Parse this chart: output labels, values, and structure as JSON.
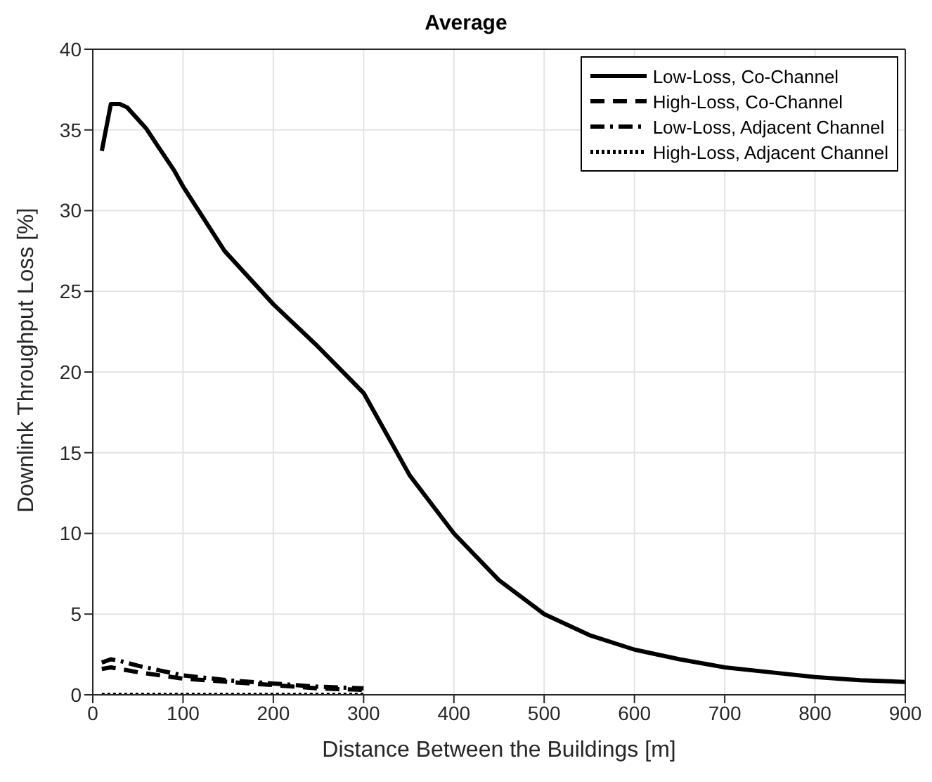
{
  "chart_data": {
    "type": "line",
    "title": "Average",
    "xlabel": "Distance Between the Buildings [m]",
    "ylabel": "Downlink Throughput Loss [%]",
    "xlim": [
      0,
      900
    ],
    "xticks": [
      0,
      100,
      200,
      300,
      400,
      500,
      600,
      700,
      800,
      900
    ],
    "ylim": [
      0,
      40
    ],
    "yticks": [
      0,
      5,
      10,
      15,
      20,
      25,
      30,
      35,
      40
    ],
    "grid": true,
    "legend": "top right",
    "marker": "none",
    "series": [
      {
        "name": "Low-Loss, Co-Channel",
        "color": "#000000",
        "line_style": "solid",
        "x": [
          10,
          20,
          30,
          38,
          59,
          72,
          90,
          100,
          146,
          200,
          249,
          300,
          351,
          400,
          450,
          500,
          550,
          600,
          650,
          700,
          750,
          800,
          850,
          900
        ],
        "values": [
          33.7,
          36.6,
          36.6,
          36.4,
          35.1,
          34.0,
          32.5,
          31.5,
          27.5,
          24.2,
          21.6,
          18.7,
          13.6,
          10.0,
          7.1,
          5.0,
          3.7,
          2.8,
          2.2,
          1.7,
          1.4,
          1.1,
          0.9,
          0.8
        ]
      },
      {
        "name": "High-Loss, Co-Channel",
        "color": "#000000",
        "line_style": "dashed",
        "x": [
          10,
          20,
          30,
          50,
          75,
          100,
          150,
          200,
          250,
          300
        ],
        "values": [
          1.6,
          1.7,
          1.6,
          1.4,
          1.2,
          1.0,
          0.8,
          0.6,
          0.4,
          0.3
        ]
      },
      {
        "name": "Low-Loss, Adjacent Channel",
        "color": "#000000",
        "line_style": "dashdot",
        "x": [
          10,
          20,
          30,
          50,
          75,
          100,
          150,
          200,
          250,
          300
        ],
        "values": [
          2.0,
          2.2,
          2.1,
          1.8,
          1.5,
          1.2,
          0.9,
          0.7,
          0.5,
          0.4
        ]
      },
      {
        "name": "High-Loss, Adjacent Channel",
        "color": "#000000",
        "line_style": "dotted",
        "x": [
          10,
          20,
          30,
          50,
          75,
          100,
          150,
          200,
          250,
          300
        ],
        "values": [
          0,
          0,
          0,
          0,
          0,
          0,
          0,
          0,
          0,
          0
        ]
      }
    ]
  }
}
